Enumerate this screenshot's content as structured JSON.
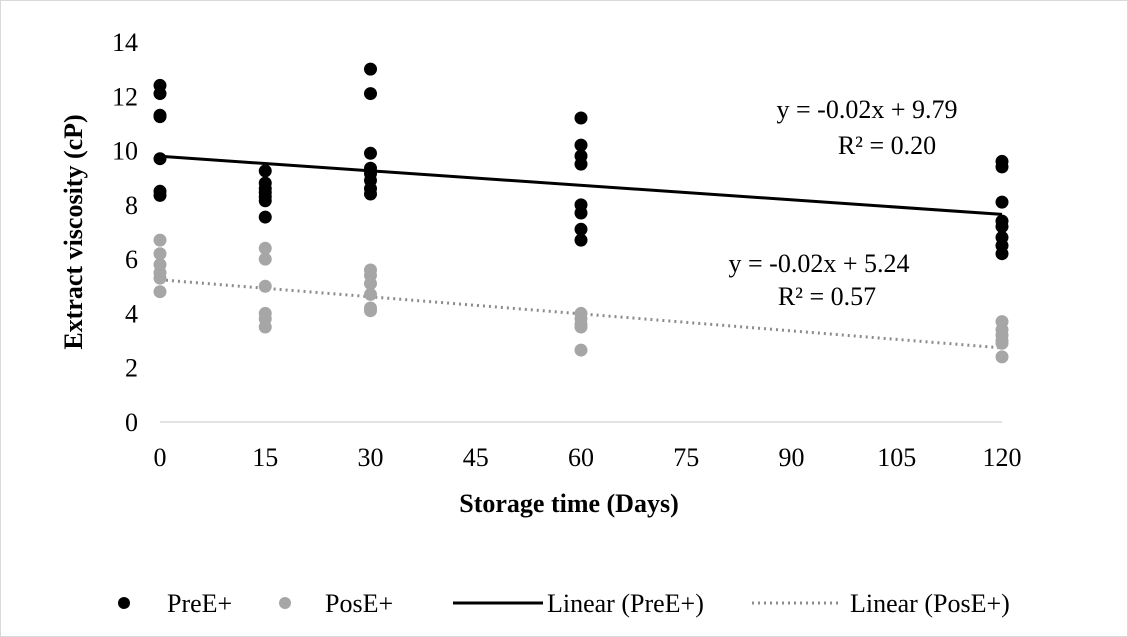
{
  "chart_data": {
    "type": "scatter",
    "xlabel": "Storage time (Days)",
    "ylabel": "Extract viscosity (cP)",
    "xlim": [
      0,
      120
    ],
    "ylim": [
      0,
      14
    ],
    "x_ticks": [
      "0",
      "15",
      "30",
      "45",
      "60",
      "75",
      "90",
      "105",
      "120"
    ],
    "y_ticks": [
      "0",
      "2",
      "4",
      "6",
      "8",
      "10",
      "12",
      "14"
    ],
    "grid": false,
    "legend_position": "bottom",
    "series": [
      {
        "name": "PreE+",
        "kind": "points",
        "color": "#000000",
        "points": [
          [
            0,
            12.4
          ],
          [
            0,
            12.1
          ],
          [
            0,
            11.3
          ],
          [
            0,
            11.25
          ],
          [
            0,
            9.7
          ],
          [
            0,
            8.5
          ],
          [
            0,
            8.35
          ],
          [
            15,
            9.25
          ],
          [
            15,
            8.8
          ],
          [
            15,
            8.6
          ],
          [
            15,
            8.45
          ],
          [
            15,
            8.3
          ],
          [
            15,
            8.15
          ],
          [
            15,
            7.55
          ],
          [
            30,
            13.0
          ],
          [
            30,
            12.1
          ],
          [
            30,
            9.9
          ],
          [
            30,
            9.35
          ],
          [
            30,
            9.15
          ],
          [
            30,
            8.9
          ],
          [
            30,
            8.6
          ],
          [
            30,
            8.4
          ],
          [
            60,
            11.2
          ],
          [
            60,
            10.2
          ],
          [
            60,
            9.8
          ],
          [
            60,
            9.5
          ],
          [
            60,
            8.0
          ],
          [
            60,
            7.7
          ],
          [
            60,
            7.1
          ],
          [
            60,
            6.7
          ],
          [
            120,
            9.6
          ],
          [
            120,
            9.4
          ],
          [
            120,
            8.1
          ],
          [
            120,
            7.4
          ],
          [
            120,
            7.2
          ],
          [
            120,
            6.8
          ],
          [
            120,
            6.5
          ],
          [
            120,
            6.2
          ]
        ]
      },
      {
        "name": "PosE+",
        "kind": "points",
        "color": "#a6a6a6",
        "points": [
          [
            0,
            6.7
          ],
          [
            0,
            6.2
          ],
          [
            0,
            5.8
          ],
          [
            0,
            5.5
          ],
          [
            0,
            5.3
          ],
          [
            0,
            4.8
          ],
          [
            15,
            6.4
          ],
          [
            15,
            6.0
          ],
          [
            15,
            5.0
          ],
          [
            15,
            4.0
          ],
          [
            15,
            3.8
          ],
          [
            15,
            3.5
          ],
          [
            30,
            5.6
          ],
          [
            30,
            5.4
          ],
          [
            30,
            5.1
          ],
          [
            30,
            4.7
          ],
          [
            30,
            4.2
          ],
          [
            30,
            4.1
          ],
          [
            60,
            4.0
          ],
          [
            60,
            3.8
          ],
          [
            60,
            3.6
          ],
          [
            60,
            3.5
          ],
          [
            60,
            2.65
          ],
          [
            120,
            3.7
          ],
          [
            120,
            3.4
          ],
          [
            120,
            3.2
          ],
          [
            120,
            3.0
          ],
          [
            120,
            2.9
          ],
          [
            120,
            2.4
          ]
        ]
      },
      {
        "name": "Linear (PreE+)",
        "kind": "trendline",
        "color": "#000000",
        "dash": "solid",
        "x": [
          0,
          120
        ],
        "y": [
          9.79,
          7.65
        ]
      },
      {
        "name": "Linear (PosE+)",
        "kind": "trendline",
        "color": "#8c8c8c",
        "dash": "dotted",
        "x": [
          0,
          120
        ],
        "y": [
          5.24,
          2.73
        ]
      }
    ],
    "annotations": [
      {
        "id": "pre-eq",
        "line1": "y = -0.02x + 9.79",
        "line2": "R² = 0.20"
      },
      {
        "id": "pos-eq",
        "line1": "y = -0.02x + 5.24",
        "line2": "R² = 0.57"
      }
    ]
  }
}
